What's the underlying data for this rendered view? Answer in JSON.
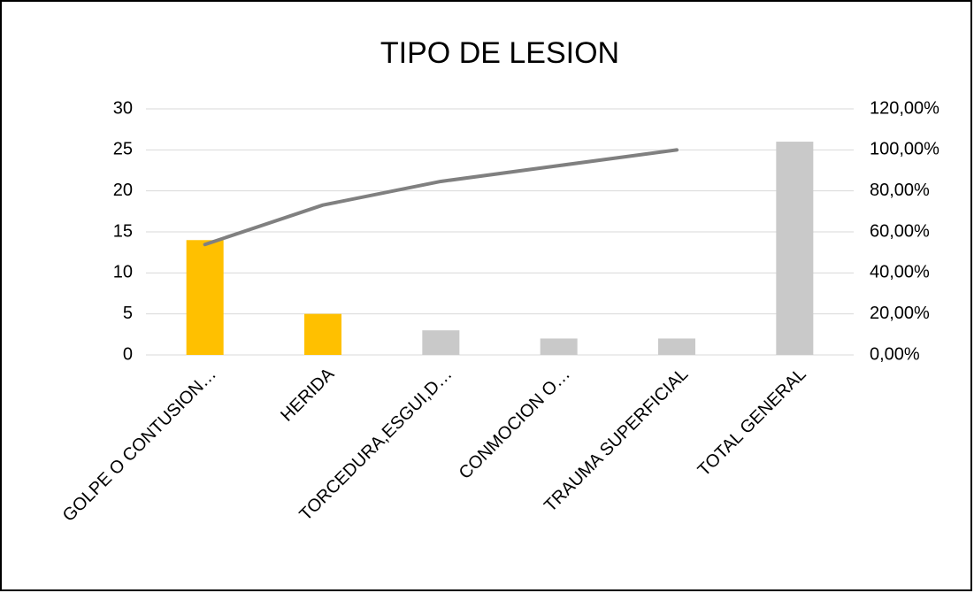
{
  "chart_data": {
    "type": "bar",
    "title": "TIPO DE LESION",
    "categories": [
      "GOLPE O CONTUSION…",
      "HERIDA",
      "TORCEDURA,ESGUI,D…",
      "CONMOCION O…",
      "TRAUMA SUPERFICIAL",
      "TOTAL GENERAL"
    ],
    "series": [
      {
        "type": "bar",
        "colors": [
          "#ffc000",
          "#ffc000",
          "#c9c9c9",
          "#c9c9c9",
          "#c9c9c9",
          "#c9c9c9"
        ],
        "values": [
          14,
          5,
          3,
          2,
          2,
          26
        ]
      },
      {
        "type": "line",
        "color": "#808080",
        "axis": "y2",
        "values": [
          53.85,
          73.08,
          84.62,
          92.31,
          100,
          null
        ]
      }
    ],
    "ylim": [
      0,
      30
    ],
    "yticks": [
      0,
      5,
      10,
      15,
      20,
      25,
      30
    ],
    "y2lim": [
      0,
      120
    ],
    "y2ticks": [
      {
        "value": 0,
        "label": "0,00%"
      },
      {
        "value": 20,
        "label": "20,00%"
      },
      {
        "value": 40,
        "label": "40,00%"
      },
      {
        "value": 60,
        "label": "60,00%"
      },
      {
        "value": 80,
        "label": "80,00%"
      },
      {
        "value": 100,
        "label": "100,00%"
      },
      {
        "value": 120,
        "label": "120,00%"
      }
    ],
    "grid": true
  }
}
